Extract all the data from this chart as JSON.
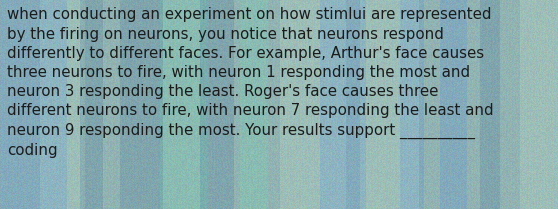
{
  "text": "when conducting an experiment on how stimlui are represented\nby the firing on neurons, you notice that neurons respond\ndifferently to different faces. For example, Arthur's face causes\nthree neurons to fire, with neuron 1 responding the most and\nneuron 3 responding the least. Roger's face causes three\ndifferent neurons to fire, with neuron 7 responding the least and\nneuron 9 responding the most. Your results support __________\ncoding",
  "text_color": "#1c1c1c",
  "font_size": 10.8,
  "figsize": [
    5.58,
    2.09
  ],
  "dpi": 100
}
